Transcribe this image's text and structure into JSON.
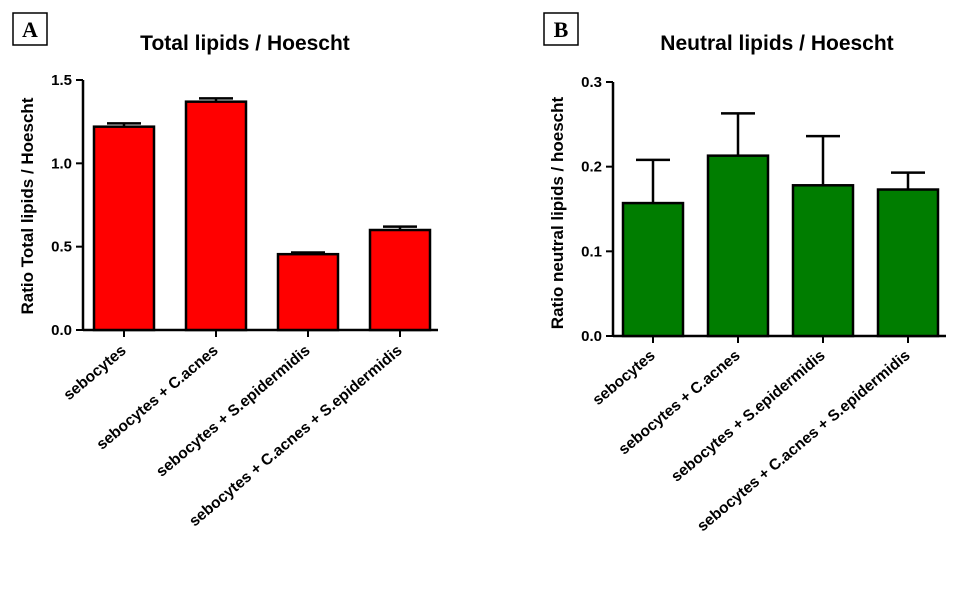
{
  "chart_data": [
    {
      "type": "bar",
      "panel_label": "A",
      "title": "Total lipids / Hoescht",
      "xlabel": "",
      "ylabel": "Ratio Total lipids / Hoescht",
      "categories": [
        "sebocytes",
        "sebocytes + C.acnes",
        "sebocytes + S.epidermidis",
        "sebocytes + C.acnes + S.epidermidis"
      ],
      "values": [
        1.22,
        1.37,
        0.455,
        0.6
      ],
      "errors": [
        0.02,
        0.02,
        0.01,
        0.02
      ],
      "ylim": [
        0,
        1.5
      ],
      "yticks": [
        0.0,
        0.5,
        1.0,
        1.5
      ],
      "ytick_labels": [
        "0.0",
        "0.5",
        "1.0",
        "1.5"
      ],
      "bar_color": "#ff0000",
      "grid": false,
      "legend": "none"
    },
    {
      "type": "bar",
      "panel_label": "B",
      "title": "Neutral lipids / Hoescht",
      "xlabel": "",
      "ylabel": "Ratio neutral   lipids / hoescht",
      "categories": [
        "sebocytes",
        "sebocytes + C.acnes",
        "sebocytes + S.epidermidis",
        "sebocytes + C.acnes + S.epidermidis"
      ],
      "values": [
        0.157,
        0.213,
        0.178,
        0.173
      ],
      "errors": [
        0.051,
        0.05,
        0.058,
        0.02
      ],
      "ylim": [
        0,
        0.3
      ],
      "yticks": [
        0.0,
        0.1,
        0.2,
        0.3
      ],
      "ytick_labels": [
        "0.0",
        "0.1",
        "0.2",
        "0.3"
      ],
      "bar_color": "#007d00",
      "grid": false,
      "legend": "none"
    }
  ]
}
